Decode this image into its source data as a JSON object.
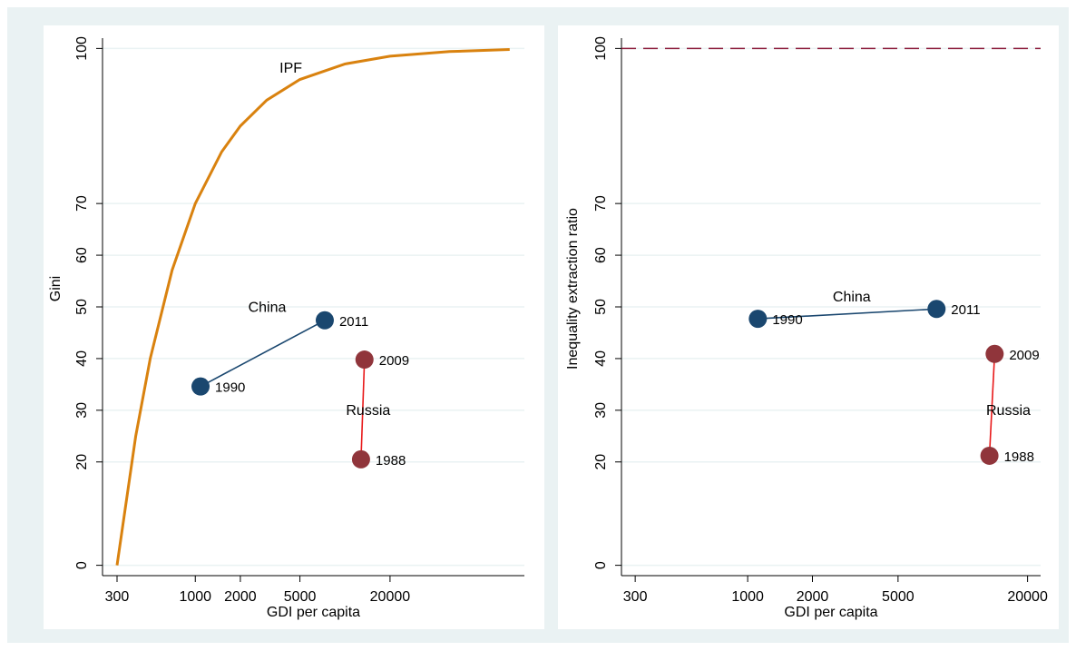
{
  "chart_data": [
    {
      "type": "line",
      "log_x": true,
      "grid": true,
      "xlabel": "GDI per capita",
      "ylabel": "Gini",
      "xlim": [
        240,
        158000
      ],
      "ylim": [
        -2,
        102
      ],
      "xticks": [
        300,
        1000,
        2000,
        5000,
        20000
      ],
      "yticks": [
        0,
        20,
        30,
        40,
        50,
        60,
        70,
        100
      ],
      "series": [
        {
          "name": "IPF",
          "color": "#d9820f",
          "marker": false,
          "x": [
            300,
            400,
            500,
            700,
            1000,
            1500,
            2000,
            3000,
            5000,
            10000,
            20000,
            50000,
            126000
          ],
          "values": [
            0,
            25,
            40,
            57.1,
            70,
            80,
            85,
            90,
            94,
            97,
            98.5,
            99.4,
            99.8
          ]
        },
        {
          "name": "China",
          "color": "#1a476f",
          "marker": true,
          "marker_color": "#1a476f",
          "x": [
            1084,
            7330
          ],
          "values": [
            34.6,
            47.4
          ],
          "labels": [
            "1990",
            "2011"
          ]
        },
        {
          "name": "Russia",
          "color": "#e8191a",
          "marker": true,
          "marker_color": "#90353b",
          "x": [
            12800,
            13500
          ],
          "values": [
            20.5,
            39.8
          ],
          "labels": [
            "1988",
            "2009"
          ]
        }
      ]
    },
    {
      "type": "line",
      "log_x": true,
      "grid": true,
      "xlabel": "GDI per capita",
      "ylabel": "Inequality extraction ratio",
      "xlim": [
        259,
        23000
      ],
      "ylim": [
        -2,
        102
      ],
      "xticks": [
        300,
        1000,
        2000,
        5000,
        20000
      ],
      "yticks": [
        0,
        20,
        30,
        40,
        50,
        60,
        70,
        100
      ],
      "hline": 100,
      "hline_color": "#8b1a3a",
      "series": [
        {
          "name": "China",
          "color": "#1a476f",
          "marker": true,
          "marker_color": "#1a476f",
          "x": [
            1115,
            7550
          ],
          "values": [
            47.7,
            49.6
          ],
          "labels": [
            "1990",
            "2011"
          ]
        },
        {
          "name": "Russia",
          "color": "#e8191a",
          "marker": true,
          "marker_color": "#90353b",
          "x": [
            13300,
            14060
          ],
          "values": [
            21.2,
            40.9
          ],
          "labels": [
            "1988",
            "2009"
          ]
        }
      ]
    }
  ]
}
